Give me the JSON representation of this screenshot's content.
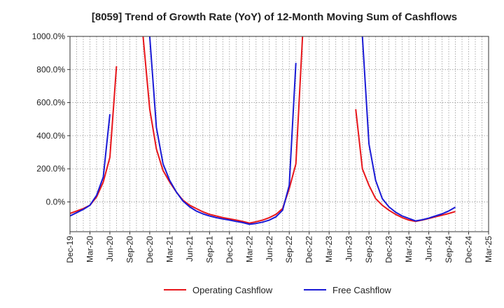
{
  "chart_data": {
    "type": "line",
    "title": "[8059]  Trend of Growth Rate (YoY) of 12-Month Moving Sum of Cashflows",
    "xlabel": "",
    "ylabel": "",
    "ylim": [
      -180,
      1000
    ],
    "xlim": [
      "2019-12",
      "2025-03"
    ],
    "y_ticks": [
      "1000.0%",
      "800.0%",
      "600.0%",
      "400.0%",
      "200.0%",
      "0.0%"
    ],
    "x_ticks": [
      "Dec-19",
      "Mar-20",
      "Jun-20",
      "Sep-20",
      "Dec-20",
      "Mar-21",
      "Jun-21",
      "Sep-21",
      "Dec-21",
      "Mar-22",
      "Jun-22",
      "Sep-22",
      "Dec-22",
      "Mar-23",
      "Jun-23",
      "Sep-23",
      "Dec-23",
      "Mar-24",
      "Jun-24",
      "Sep-24",
      "Dec-24",
      "Mar-25"
    ],
    "grid": true,
    "legend_position": "bottom",
    "series": [
      {
        "name": "Operating Cashflow",
        "color": "#e8161b",
        "segments": [
          [
            [
              "2019-12",
              -70
            ],
            [
              "2020-01",
              -55
            ],
            [
              "2020-02",
              -40
            ],
            [
              "2020-03",
              -20
            ],
            [
              "2020-04",
              30
            ],
            [
              "2020-05",
              120
            ],
            [
              "2020-06",
              270
            ],
            [
              "2020-07",
              820
            ]
          ],
          [
            [
              "2020-11",
              1000
            ],
            [
              "2020-12",
              560
            ],
            [
              "2021-01",
              320
            ],
            [
              "2021-02",
              190
            ],
            [
              "2021-03",
              120
            ],
            [
              "2021-04",
              60
            ],
            [
              "2021-05",
              10
            ],
            [
              "2021-06",
              -20
            ],
            [
              "2021-07",
              -40
            ],
            [
              "2021-08",
              -60
            ],
            [
              "2021-09",
              -75
            ],
            [
              "2021-10",
              -85
            ],
            [
              "2021-11",
              -95
            ],
            [
              "2021-12",
              -102
            ],
            [
              "2022-01",
              -110
            ],
            [
              "2022-02",
              -118
            ],
            [
              "2022-03",
              -128
            ],
            [
              "2022-04",
              -120
            ],
            [
              "2022-05",
              -110
            ],
            [
              "2022-06",
              -95
            ],
            [
              "2022-07",
              -75
            ],
            [
              "2022-08",
              -40
            ],
            [
              "2022-09",
              80
            ],
            [
              "2022-10",
              230
            ],
            [
              "2022-11",
              1000
            ]
          ],
          [
            [
              "2023-07",
              560
            ],
            [
              "2023-08",
              200
            ],
            [
              "2023-09",
              100
            ],
            [
              "2023-10",
              20
            ],
            [
              "2023-11",
              -20
            ],
            [
              "2023-12",
              -50
            ],
            [
              "2024-01",
              -75
            ],
            [
              "2024-02",
              -95
            ],
            [
              "2024-03",
              -110
            ],
            [
              "2024-04",
              -118
            ],
            [
              "2024-05",
              -110
            ],
            [
              "2024-06",
              -100
            ],
            [
              "2024-07",
              -90
            ],
            [
              "2024-08",
              -80
            ],
            [
              "2024-09",
              -70
            ],
            [
              "2024-10",
              -58
            ]
          ]
        ]
      },
      {
        "name": "Free Cashflow",
        "color": "#1a1ad6",
        "segments": [
          [
            [
              "2019-12",
              -85
            ],
            [
              "2020-01",
              -65
            ],
            [
              "2020-02",
              -45
            ],
            [
              "2020-03",
              -20
            ],
            [
              "2020-04",
              40
            ],
            [
              "2020-05",
              150
            ],
            [
              "2020-06",
              530
            ]
          ],
          [
            [
              "2020-12",
              1000
            ],
            [
              "2021-01",
              450
            ],
            [
              "2021-02",
              230
            ],
            [
              "2021-03",
              130
            ],
            [
              "2021-04",
              60
            ],
            [
              "2021-05",
              5
            ],
            [
              "2021-06",
              -30
            ],
            [
              "2021-07",
              -55
            ],
            [
              "2021-08",
              -72
            ],
            [
              "2021-09",
              -85
            ],
            [
              "2021-10",
              -95
            ],
            [
              "2021-11",
              -103
            ],
            [
              "2021-12",
              -110
            ],
            [
              "2022-01",
              -118
            ],
            [
              "2022-02",
              -125
            ],
            [
              "2022-03",
              -135
            ],
            [
              "2022-04",
              -130
            ],
            [
              "2022-05",
              -122
            ],
            [
              "2022-06",
              -110
            ],
            [
              "2022-07",
              -90
            ],
            [
              "2022-08",
              -50
            ],
            [
              "2022-09",
              100
            ],
            [
              "2022-10",
              840
            ]
          ],
          [
            [
              "2023-08",
              1000
            ],
            [
              "2023-09",
              350
            ],
            [
              "2023-10",
              130
            ],
            [
              "2023-11",
              20
            ],
            [
              "2023-12",
              -30
            ],
            [
              "2024-01",
              -62
            ],
            [
              "2024-02",
              -85
            ],
            [
              "2024-03",
              -100
            ],
            [
              "2024-04",
              -115
            ],
            [
              "2024-05",
              -108
            ],
            [
              "2024-06",
              -98
            ],
            [
              "2024-07",
              -85
            ],
            [
              "2024-08",
              -72
            ],
            [
              "2024-09",
              -55
            ],
            [
              "2024-10",
              -32
            ]
          ]
        ]
      }
    ]
  }
}
